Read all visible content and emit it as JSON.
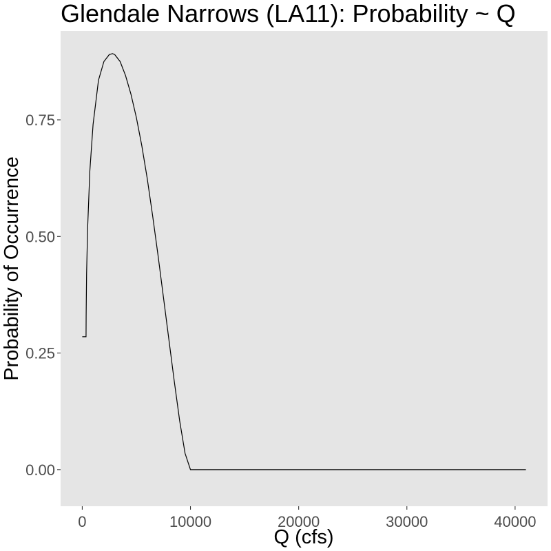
{
  "chart_data": {
    "type": "line",
    "title": "Glendale Narrows (LA11): Probability ~ Q",
    "xlabel": "Q (cfs)",
    "ylabel": "Probability of Occurrence",
    "xlim": [
      -2000,
      43000
    ],
    "ylim": [
      -0.0785,
      0.9405
    ],
    "xticks": [
      0,
      10000,
      20000,
      30000,
      40000
    ],
    "xtick_labels": [
      "0",
      "10000",
      "20000",
      "30000",
      "40000"
    ],
    "yticks": [
      0,
      0.25,
      0.5,
      0.75
    ],
    "ytick_labels": [
      "0.00",
      "0.25",
      "0.50",
      "0.75"
    ],
    "grid": false,
    "legend": "none",
    "panel_color": "#e5e5e5",
    "line_color": "#000000",
    "series": [
      {
        "x": [
          0,
          350,
          360,
          400,
          500,
          700,
          1000,
          1500,
          2000,
          2500,
          2800,
          3000,
          3500,
          4000,
          4500,
          5000,
          5500,
          6000,
          6500,
          7000,
          7500,
          8000,
          8500,
          9000,
          9500,
          10000,
          15000,
          20000,
          25000,
          30000,
          35000,
          40000,
          41000
        ],
        "y": [
          0.285,
          0.285,
          0.33,
          0.42,
          0.52,
          0.64,
          0.74,
          0.835,
          0.875,
          0.89,
          0.892,
          0.89,
          0.875,
          0.845,
          0.805,
          0.755,
          0.695,
          0.625,
          0.545,
          0.46,
          0.37,
          0.28,
          0.19,
          0.105,
          0.035,
          0.0,
          0.0,
          0.0,
          0.0,
          0.0,
          0.0,
          0.0,
          0.0
        ]
      }
    ]
  }
}
